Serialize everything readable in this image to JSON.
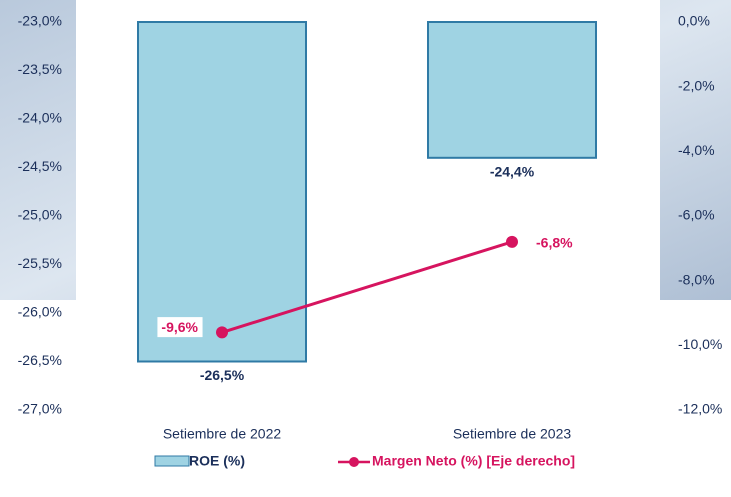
{
  "chart_data": {
    "type": "bar",
    "categories": [
      "Setiembre de 2022",
      "Setiembre de 2023"
    ],
    "series": [
      {
        "name": "ROE (%)",
        "type": "bar",
        "axis": "y",
        "color": "#9fd3e3",
        "values": [
          -26.5,
          -24.4
        ],
        "value_labels": [
          "-26,5%",
          "-24,4%"
        ]
      },
      {
        "name": "Margen Neto (%) [Eje derecho]",
        "type": "line",
        "axis": "y2",
        "color": "#d6145f",
        "values": [
          -9.6,
          -6.8
        ],
        "value_labels": [
          "-9,6%",
          "-6,8%"
        ]
      }
    ],
    "ylim": [
      -27,
      -23
    ],
    "yticks": [
      {
        "value": -27,
        "label": "-27,0%"
      },
      {
        "value": -26.5,
        "label": "-26,5%"
      },
      {
        "value": -26,
        "label": "-26,0%"
      },
      {
        "value": -25.5,
        "label": "-25,5%"
      },
      {
        "value": -25,
        "label": "-25,0%"
      },
      {
        "value": -24.5,
        "label": "-24,5%"
      },
      {
        "value": -24,
        "label": "-24,0%"
      },
      {
        "value": -23.5,
        "label": "-23,5%"
      },
      {
        "value": -23,
        "label": "-23,0%"
      }
    ],
    "y2lim": [
      -12,
      0
    ],
    "y2ticks": [
      {
        "value": -12,
        "label": "-12,0%"
      },
      {
        "value": -10,
        "label": "-10,0%"
      },
      {
        "value": -8,
        "label": "-8,0%"
      },
      {
        "value": -6,
        "label": "-6,0%"
      },
      {
        "value": -4,
        "label": "-4,0%"
      },
      {
        "value": -2,
        "label": "-2,0%"
      },
      {
        "value": 0,
        "label": "0,0%"
      }
    ]
  }
}
